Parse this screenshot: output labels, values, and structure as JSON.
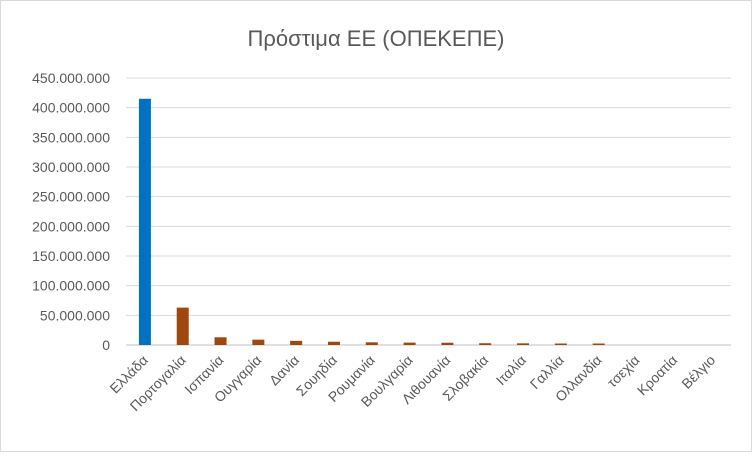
{
  "chart_data": {
    "type": "bar",
    "title": "Πρόστιμα ΕΕ (ΟΠΕΚΕΠΕ)",
    "xlabel": "",
    "ylabel": "",
    "ylim": [
      0,
      450000000
    ],
    "yticks": [
      "0",
      "50.000.000",
      "100.000.000",
      "150.000.000",
      "200.000.000",
      "250.000.000",
      "300.000.000",
      "350.000.000",
      "400.000.000",
      "450.000.000"
    ],
    "ytick_values": [
      0,
      50000000,
      100000000,
      150000000,
      200000000,
      250000000,
      300000000,
      350000000,
      400000000,
      450000000
    ],
    "grid": true,
    "legend": "none",
    "categories": [
      "Ελλάδα",
      "Πορτογαλία",
      "Ισπανία",
      "Ουγγαρία",
      "Δανία",
      "Σουηδία",
      "Ρουμανία",
      "Βουλγαρία",
      "Λιθουανία",
      "Σλοβακία",
      "Ιταλία",
      "Γαλλία",
      "Ολλανδία",
      "τσεχία",
      "Κροατία",
      "Βέλγιο"
    ],
    "values": [
      415000000,
      63000000,
      13000000,
      9000000,
      7000000,
      5500000,
      4500000,
      4000000,
      3800000,
      3000000,
      2800000,
      2500000,
      2500000,
      0,
      0,
      0
    ],
    "colors": {
      "highlight": "#0070c0",
      "default": "#9e480e",
      "grid": "#d9d9d9",
      "axis": "#bfbfbf",
      "text": "#595959"
    }
  }
}
